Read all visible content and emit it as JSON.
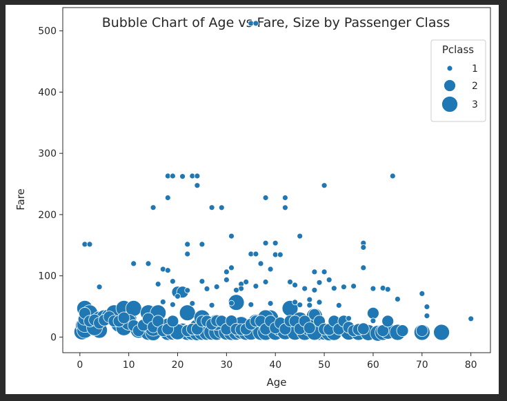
{
  "chart_data": {
    "type": "scatter",
    "title": "Bubble Chart of Age vs Fare, Size by Passenger Class",
    "xlabel": "Age",
    "ylabel": "Fare",
    "xlim": [
      -3.5,
      84
    ],
    "ylim": [
      -25.5,
      538
    ],
    "xticks": [
      0,
      10,
      20,
      30,
      40,
      50,
      60,
      70,
      80
    ],
    "yticks": [
      0,
      100,
      200,
      300,
      400,
      500
    ],
    "grid": false,
    "legend": {
      "title": "Pclass",
      "placement": "top-right",
      "entries": [
        {
          "label": "1",
          "size_class": 1
        },
        {
          "label": "2",
          "size_class": 2
        },
        {
          "label": "3",
          "size_class": 3
        }
      ]
    },
    "marker_color": "#1f77b4",
    "marker_edge_color": "#ffffff",
    "series": [
      {
        "name": "1",
        "size_class": 1,
        "x": [
          1,
          2,
          4,
          11,
          14,
          15,
          16,
          17,
          17,
          18,
          18,
          18,
          19,
          19,
          21,
          22,
          22,
          23,
          24,
          24,
          25,
          25,
          27,
          29,
          30,
          30,
          31,
          31,
          33,
          33,
          35,
          35,
          36,
          36,
          37,
          38,
          38,
          38,
          39,
          40,
          40,
          41,
          42,
          42,
          43,
          44,
          45,
          46,
          47,
          48,
          48,
          49,
          50,
          50,
          51,
          52,
          54,
          56,
          58,
          58,
          58,
          60,
          62,
          63,
          64,
          65,
          70,
          71,
          71,
          80,
          20,
          22,
          26,
          28,
          32,
          34,
          36,
          39,
          44,
          47,
          49,
          53,
          19,
          23,
          27,
          31,
          35,
          45,
          55,
          60
        ],
        "y": [
          151.55,
          151.55,
          81.86,
          120,
          120,
          211.5,
          86.5,
          110.88,
          57.5,
          263,
          227.5,
          108.9,
          263,
          91.08,
          262.38,
          151.55,
          135.63,
          263,
          263,
          247.52,
          151.55,
          91.08,
          211.5,
          211.34,
          106.42,
          93.5,
          164.87,
          113.28,
          86.5,
          79.2,
          512.33,
          135.63,
          512.33,
          135.63,
          120,
          227.52,
          153.46,
          90,
          110.88,
          153.46,
          134.5,
          134.5,
          227.52,
          211.34,
          90,
          85,
          164.87,
          79.2,
          61.17,
          106.42,
          76.73,
          89.1,
          247.52,
          106.42,
          93.5,
          79.65,
          81.86,
          83.16,
          153.46,
          146.52,
          113.28,
          79.2,
          80,
          77.96,
          263,
          61.98,
          71,
          49.5,
          34.65,
          30,
          66.6,
          76.29,
          78.85,
          82.17,
          76.73,
          90,
          83.16,
          55,
          57,
          52,
          56.93,
          51.86,
          53.1,
          55,
          52,
          55.44,
          53.1,
          52.55,
          30.5,
          26.55
        ]
      },
      {
        "name": "2",
        "size_class": 2,
        "x": [
          0.83,
          1,
          2,
          3,
          4,
          5,
          6,
          7,
          8,
          9,
          11,
          12,
          13,
          14,
          15,
          16,
          17,
          18,
          19,
          20,
          21,
          22,
          23,
          24,
          25,
          26,
          27,
          28,
          29,
          30,
          31,
          32,
          33,
          34,
          35,
          36,
          37,
          38,
          39,
          40,
          41,
          42,
          43,
          44,
          45,
          46,
          47,
          48,
          49,
          50,
          51,
          52,
          53,
          54,
          55,
          56,
          57,
          58,
          60,
          62,
          63,
          66,
          70
        ],
        "y": [
          29,
          39,
          26,
          27.9,
          23,
          27.75,
          33,
          26.25,
          26,
          31.39,
          18.75,
          10.5,
          19.5,
          30.07,
          16.7,
          26,
          10.5,
          13,
          26,
          73.5,
          73.5,
          10.5,
          13,
          13,
          26,
          26,
          21,
          26.55,
          26,
          13,
          26.25,
          13,
          12.27,
          13,
          21,
          26,
          26,
          13,
          26,
          15.05,
          23,
          13,
          26.25,
          26,
          13.5,
          26,
          15,
          36.75,
          26,
          13,
          12.52,
          26,
          13,
          26,
          16,
          10.5,
          12.35,
          13.5,
          39,
          10.5,
          26,
          10.5,
          10.5
        ]
      },
      {
        "name": "3",
        "size_class": 3,
        "x": [
          0.42,
          0.75,
          1,
          1,
          2,
          2,
          3,
          4,
          4,
          5,
          6,
          7,
          8,
          9,
          9,
          10,
          11,
          12,
          14,
          14,
          15,
          16,
          17,
          18,
          18,
          19,
          20,
          21,
          22,
          22,
          23,
          24,
          24,
          25,
          25,
          26,
          27,
          28,
          28,
          29,
          30,
          31,
          32,
          32,
          33,
          34,
          35,
          36,
          37,
          38,
          39,
          40,
          40,
          41,
          42,
          43,
          44,
          45,
          46,
          47,
          48,
          49,
          50,
          51,
          52,
          54,
          55,
          57,
          59,
          61,
          62,
          63,
          65,
          70,
          74,
          1,
          3,
          10,
          15,
          20,
          28,
          33,
          38,
          48
        ],
        "y": [
          8.52,
          19.26,
          46.9,
          11.13,
          39.69,
          21.08,
          15.9,
          29.13,
          11.13,
          31.39,
          33,
          39.69,
          21.08,
          46.9,
          15.25,
          29.13,
          46.9,
          11.24,
          39.69,
          7.85,
          7.23,
          39.69,
          14.46,
          7.75,
          17.8,
          8.05,
          7.92,
          9.82,
          7.78,
          39.69,
          7.85,
          16.1,
          7.25,
          7.9,
          31.39,
          7.9,
          7.93,
          22.36,
          7.9,
          10.46,
          8.05,
          7.75,
          56.5,
          7.93,
          9.5,
          7.9,
          8.05,
          24.15,
          7.9,
          7.75,
          31.28,
          9.48,
          7.9,
          14.11,
          8.66,
          46.9,
          7.92,
          27.9,
          7.75,
          14.5,
          34.38,
          7.9,
          8.05,
          7.05,
          7.55,
          14.4,
          8.05,
          7.75,
          7.25,
          6.24,
          7.75,
          9.59,
          7.75,
          7.75,
          7.78,
          20.58,
          15.25,
          24.15,
          14.45,
          8.66,
          24.15,
          20.53,
          31.39,
          7.85
        ]
      }
    ]
  }
}
